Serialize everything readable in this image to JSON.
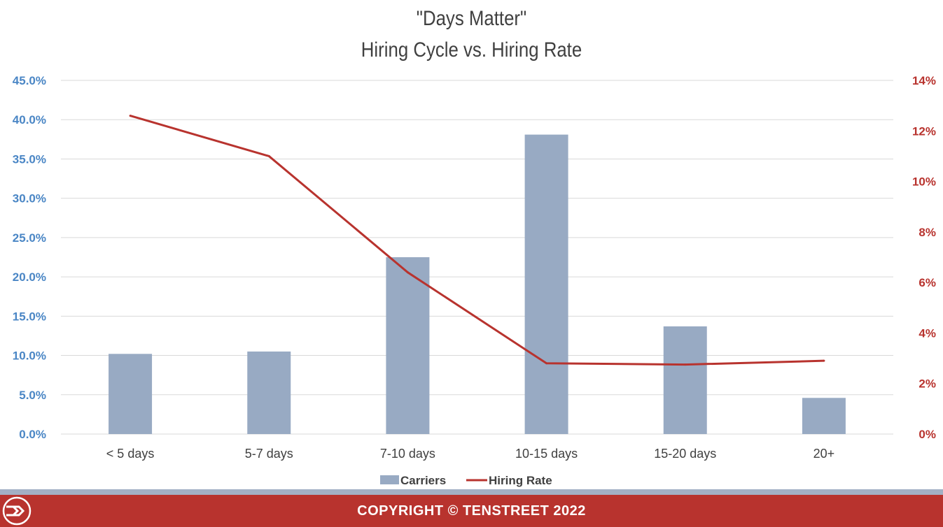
{
  "chart_data": {
    "type": "bar",
    "title": "\"Days Matter\"",
    "subtitle": "Hiring Cycle vs. Hiring Rate",
    "categories": [
      "< 5 days",
      "5-7 days",
      "7-10 days",
      "10-15 days",
      "15-20 days",
      "20+"
    ],
    "series": [
      {
        "name": "Carriers",
        "type": "bar",
        "axis": "left",
        "color": "#98aac3",
        "values": [
          10.2,
          10.5,
          22.5,
          38.1,
          13.7,
          4.6
        ]
      },
      {
        "name": "Hiring Rate",
        "type": "line",
        "axis": "right",
        "color": "#b8332e",
        "values": [
          12.6,
          11.0,
          6.4,
          2.8,
          2.75,
          2.9
        ]
      }
    ],
    "y_left": {
      "min": 0,
      "max": 45,
      "step": 5,
      "ticks": [
        "0.0%",
        "5.0%",
        "10.0%",
        "15.0%",
        "20.0%",
        "25.0%",
        "30.0%",
        "35.0%",
        "40.0%",
        "45.0%"
      ],
      "color": "#4a86c5"
    },
    "y_right": {
      "min": 0,
      "max": 14,
      "step": 2,
      "ticks": [
        "0%",
        "2%",
        "4%",
        "6%",
        "8%",
        "10%",
        "12%",
        "14%"
      ],
      "color": "#b8332e"
    },
    "grid": true,
    "legend_position": "bottom"
  },
  "footer": {
    "copyright": "COPYRIGHT © TENSTREET 2022"
  }
}
